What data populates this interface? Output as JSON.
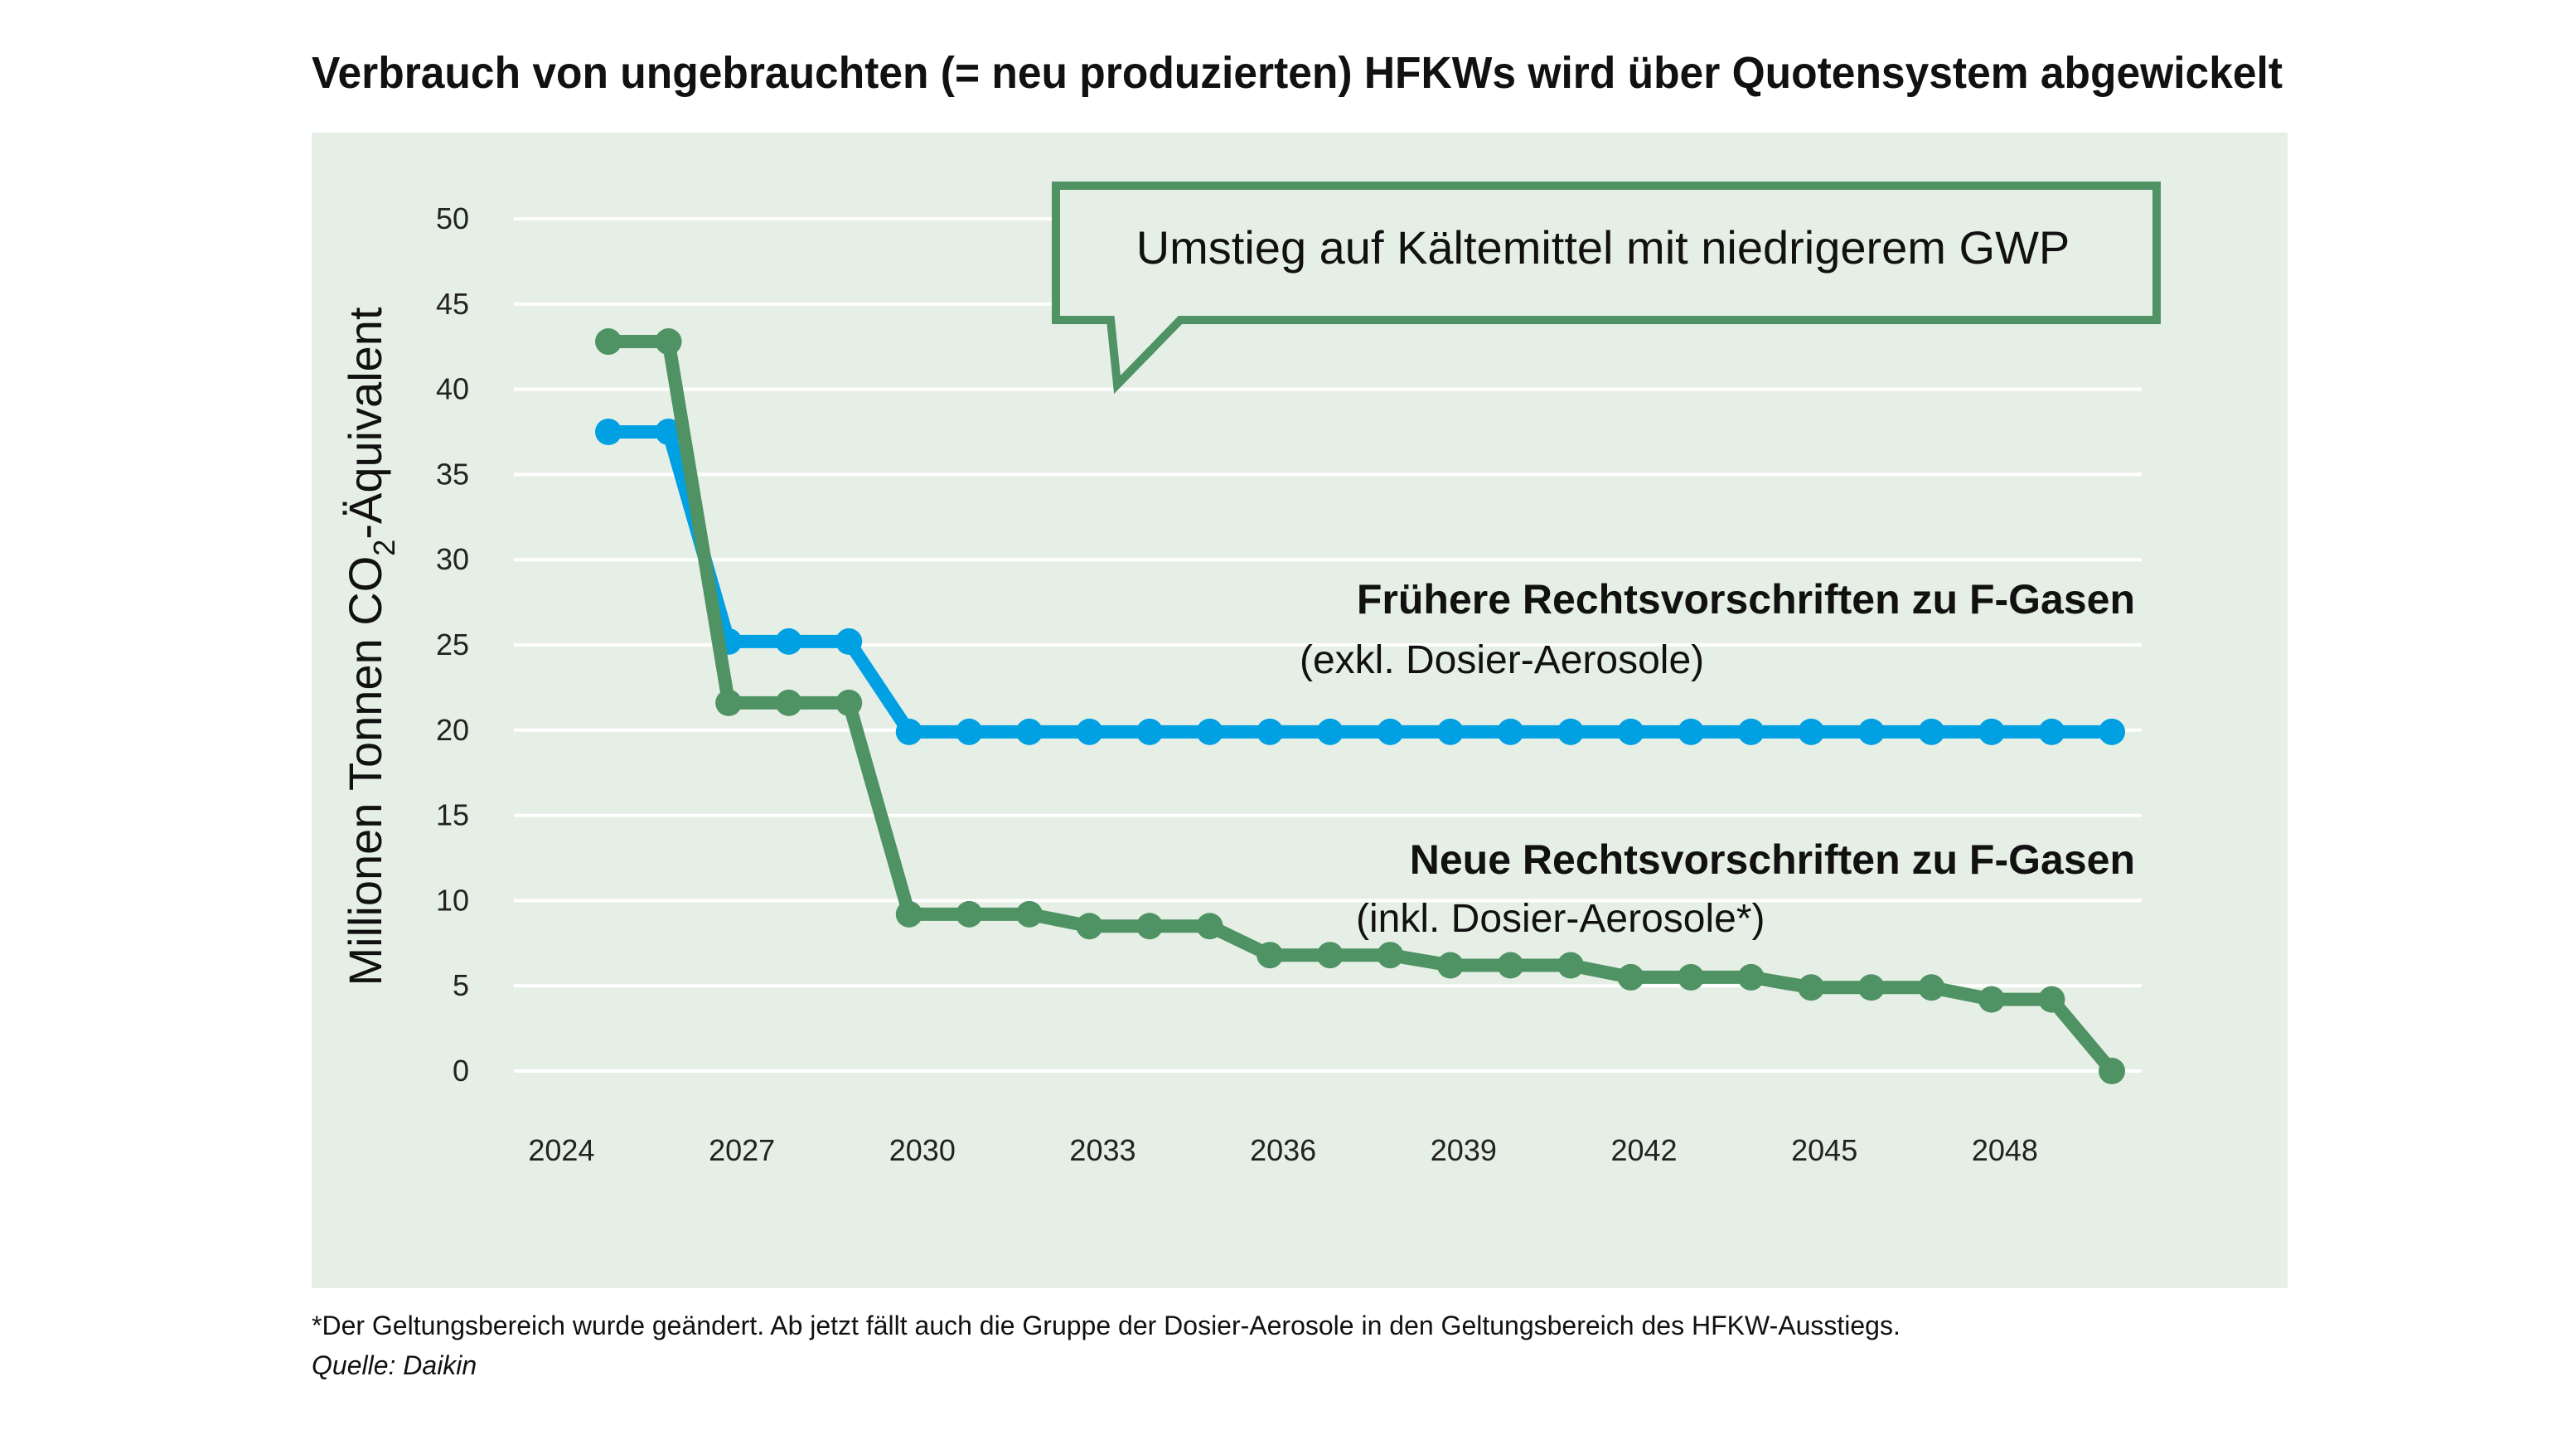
{
  "title": "Verbrauch von ungebrauchten (= neu produzierten) HFKWs wird über Quotensystem abgewickelt",
  "callout": "Umstieg auf Kältemittel mit niedrigerem GWP",
  "footnote": "*Der Geltungsbereich wurde geändert. Ab jetzt fällt auch die Gruppe der Dosier-Aerosole in den Geltungsbereich des HFKW-Ausstiegs.",
  "source": "Quelle: Daikin",
  "colors": {
    "background": "#e6efe5",
    "blue": "#00a0e3",
    "green": "#4f9263"
  },
  "chart_data": {
    "type": "line",
    "title": "Verbrauch von ungebrauchten (= neu produzierten) HFKWs wird über Quotensystem abgewickelt",
    "ylabel_parts": {
      "main": "Millionen Tonnen CO",
      "sub": "2",
      "rest": "-Äquivalent"
    },
    "xlabel": "",
    "ylim": [
      0,
      50
    ],
    "yticks": [
      "0",
      "5",
      "10",
      "15",
      "20",
      "25",
      "30",
      "35",
      "40",
      "45",
      "50"
    ],
    "xticks": [
      "2024",
      "2027",
      "2030",
      "2033",
      "2036",
      "2039",
      "2042",
      "2045",
      "2048"
    ],
    "grid": true,
    "x": [
      2025,
      2026,
      2027,
      2028,
      2029,
      2030,
      2031,
      2032,
      2033,
      2034,
      2035,
      2036,
      2037,
      2038,
      2039,
      2040,
      2041,
      2042,
      2043,
      2044,
      2045,
      2046,
      2047,
      2048,
      2049,
      2050
    ],
    "series": [
      {
        "name": "Frühere Rechtsvorschriften zu F-Gasen",
        "subtitle": "(exkl. Dosier-Aerosole)",
        "color": "#00a0e3",
        "values": [
          37.5,
          37.5,
          25.2,
          25.2,
          25.2,
          19.9,
          19.9,
          19.9,
          19.9,
          19.9,
          19.9,
          19.9,
          19.9,
          19.9,
          19.9,
          19.9,
          19.9,
          19.9,
          19.9,
          19.9,
          19.9,
          19.9,
          19.9,
          19.9,
          19.9,
          19.9
        ]
      },
      {
        "name": "Neue Rechtsvorschriften zu F-Gasen",
        "subtitle": "(inkl. Dosier-Aerosole*)",
        "color": "#4f9263",
        "values": [
          42.8,
          42.8,
          21.6,
          21.6,
          21.6,
          9.2,
          9.2,
          9.2,
          8.5,
          8.5,
          8.5,
          6.8,
          6.8,
          6.8,
          6.2,
          6.2,
          6.2,
          5.5,
          5.5,
          5.5,
          4.9,
          4.9,
          4.9,
          4.2,
          4.2,
          0
        ]
      }
    ]
  }
}
